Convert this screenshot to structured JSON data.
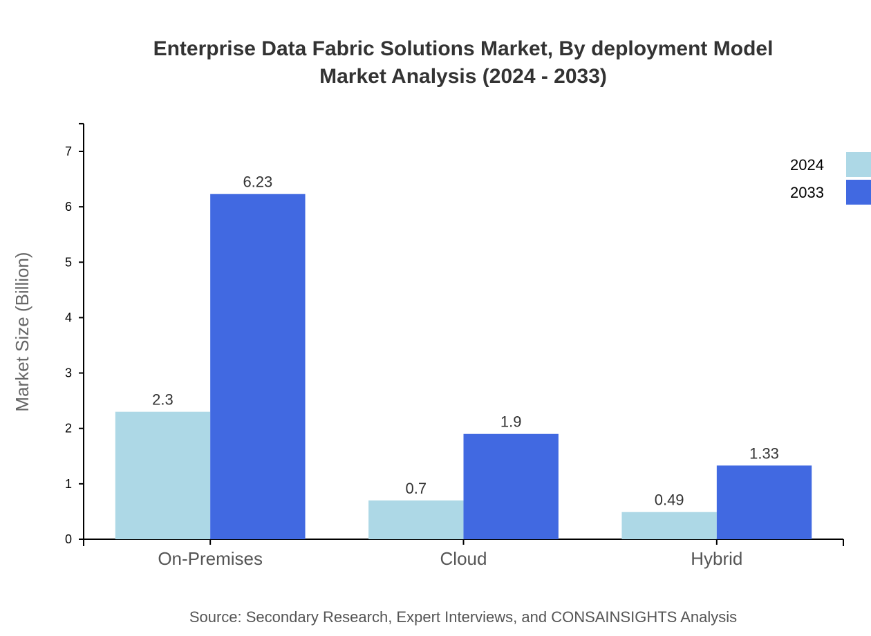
{
  "chart_data": {
    "type": "bar",
    "title": [
      "Enterprise Data Fabric Solutions Market, By deployment Model",
      "Market Analysis (2024 - 2033)"
    ],
    "xlabel": "",
    "ylabel": "Market Size (Billion)",
    "categories": [
      "On-Premises",
      "Cloud",
      "Hybrid"
    ],
    "series": [
      {
        "name": "2024",
        "color": "#ADD8E6",
        "values": [
          2.3,
          0.7,
          0.49
        ],
        "labels": [
          "2.3",
          "0.7",
          "0.49"
        ]
      },
      {
        "name": "2033",
        "color": "#4169E1",
        "values": [
          6.23,
          1.9,
          1.33
        ],
        "labels": [
          "6.23",
          "1.9",
          "1.33"
        ]
      }
    ],
    "ylim": [
      0,
      7.5
    ],
    "yticks": [
      "0",
      "1",
      "2",
      "3",
      "4",
      "5",
      "6",
      "7"
    ],
    "grid": false,
    "legend_position": "top-right",
    "source": "Source: Secondary Research, Expert Interviews, and CONSAINSIGHTS Analysis"
  }
}
